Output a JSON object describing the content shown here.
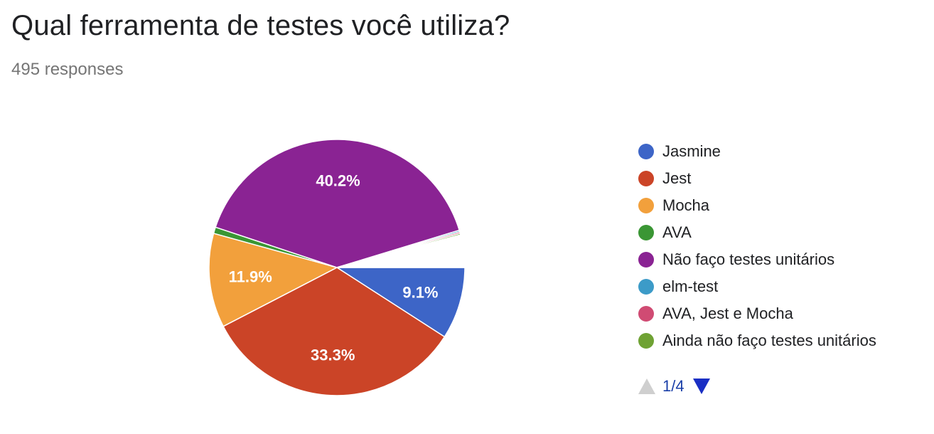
{
  "header": {
    "title": "Qual ferramenta de testes você utiliza?",
    "responses": "495 responses"
  },
  "chart_data": {
    "type": "pie",
    "title": "Qual ferramenta de testes você utiliza?",
    "legend_position": "right",
    "slices": [
      {
        "label": "Jasmine",
        "value": 9.1,
        "color": "#3d65c7",
        "data_label": "9.1%"
      },
      {
        "label": "Jest",
        "value": 33.3,
        "color": "#cb4427",
        "data_label": "33.3%"
      },
      {
        "label": "Mocha",
        "value": 11.9,
        "color": "#f2a03c",
        "data_label": "11.9%"
      },
      {
        "label": "AVA",
        "value": 0.8,
        "color": "#3a9634",
        "data_label": ""
      },
      {
        "label": "Não faço testes unitários",
        "value": 40.2,
        "color": "#8a2393",
        "data_label": "40.2%"
      },
      {
        "label": "elm-test",
        "value": 0.2,
        "color": "#3c9bc8",
        "data_label": ""
      },
      {
        "label": "AVA, Jest e Mocha",
        "value": 0.2,
        "color": "#d04b73",
        "data_label": ""
      },
      {
        "label": "Ainda não faço testes unitários",
        "value": 0.2,
        "color": "#6fa234",
        "data_label": ""
      },
      {
        "label": "",
        "value": 4.1,
        "color": "#ffffff",
        "data_label": ""
      }
    ]
  },
  "legend": {
    "items": [
      {
        "label": "Jasmine",
        "color": "#3d65c7"
      },
      {
        "label": "Jest",
        "color": "#cb4427"
      },
      {
        "label": "Mocha",
        "color": "#f2a03c"
      },
      {
        "label": "AVA",
        "color": "#3a9634"
      },
      {
        "label": "Não faço testes unitários",
        "color": "#8a2393"
      },
      {
        "label": "elm-test",
        "color": "#3c9bc8"
      },
      {
        "label": "AVA, Jest e Mocha",
        "color": "#d04b73"
      },
      {
        "label": "Ainda não faço testes unitários",
        "color": "#6fa234"
      }
    ]
  },
  "pager": {
    "text": "1/4",
    "up_icon": "triangle-up-icon",
    "down_icon": "triangle-down-icon"
  }
}
